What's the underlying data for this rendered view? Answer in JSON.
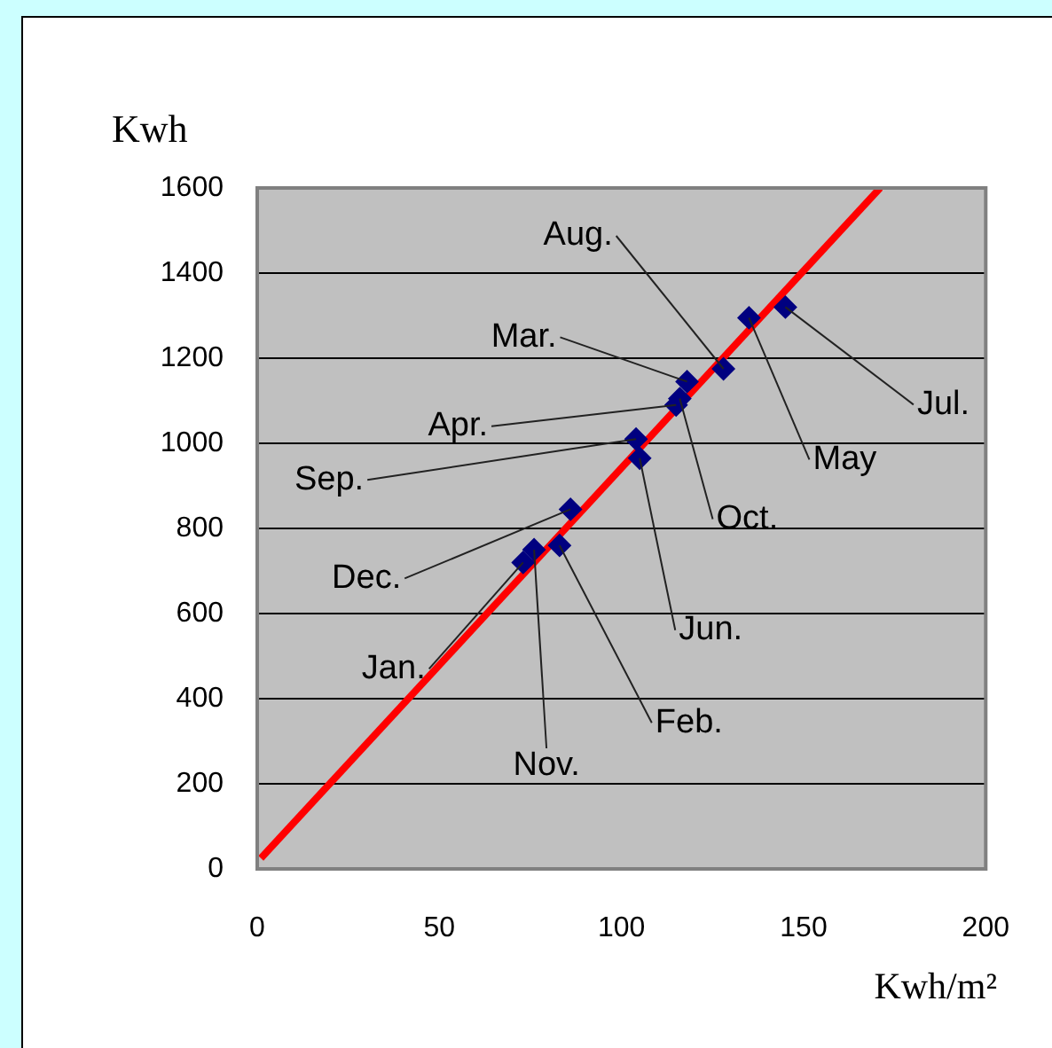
{
  "chart_data": {
    "type": "scatter",
    "xlabel": "Kwh/m²",
    "ylabel": "Kwh",
    "x": [
      73,
      83,
      118,
      115,
      135,
      105,
      145,
      128,
      104,
      116,
      76,
      86
    ],
    "series": [
      {
        "color": "#000080",
        "marker": "diamond",
        "values": [
          720,
          760,
          1145,
          1090,
          1295,
          965,
          1320,
          1175,
          1010,
          1105,
          750,
          845
        ]
      },
      {
        "type": "line",
        "color": "#ff0000",
        "x": [
          1,
          171
        ],
        "values": [
          25,
          1600
        ],
        "marker": "none",
        "line_style": "solid"
      }
    ],
    "xlim": [
      0,
      200
    ],
    "xticks": [
      0,
      50,
      100,
      150,
      200
    ],
    "ylim": [
      0,
      1600
    ],
    "yticks": [
      0,
      200,
      400,
      600,
      800,
      1000,
      1200,
      1400,
      1600
    ],
    "grid": "y",
    "legend": false,
    "annotations": [
      {
        "text": "Jan.",
        "x": 73,
        "y": 720
      },
      {
        "text": "Feb.",
        "x": 83,
        "y": 760
      },
      {
        "text": "Mar.",
        "x": 118,
        "y": 1145
      },
      {
        "text": "Apr.",
        "x": 115,
        "y": 1090
      },
      {
        "text": "May",
        "x": 135,
        "y": 1295
      },
      {
        "text": "Jun.",
        "x": 105,
        "y": 965
      },
      {
        "text": "Jul.",
        "x": 145,
        "y": 1320
      },
      {
        "text": "Aug.",
        "x": 128,
        "y": 1175
      },
      {
        "text": "Sep.",
        "x": 104,
        "y": 1010
      },
      {
        "text": "Oct.",
        "x": 116,
        "y": 1105
      },
      {
        "text": "Nov.",
        "x": 76,
        "y": 750
      },
      {
        "text": "Dec.",
        "x": 86,
        "y": 845
      }
    ]
  }
}
